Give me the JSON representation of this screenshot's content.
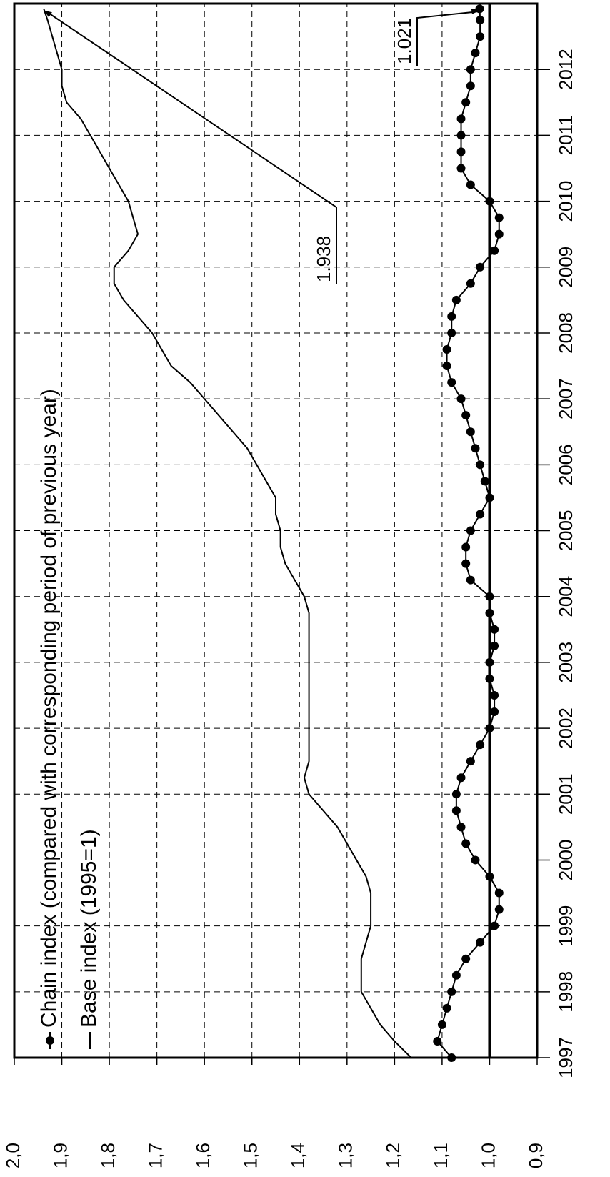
{
  "chart_data": {
    "type": "line",
    "x": [
      1997,
      1997.25,
      1997.5,
      1997.75,
      1998,
      1998.25,
      1998.5,
      1998.75,
      1999,
      1999.25,
      1999.5,
      1999.75,
      2000,
      2000.25,
      2000.5,
      2000.75,
      2001,
      2001.25,
      2001.5,
      2001.75,
      2002,
      2002.25,
      2002.5,
      2002.75,
      2003,
      2003.25,
      2003.5,
      2003.75,
      2004,
      2004.25,
      2004.5,
      2004.75,
      2005,
      2005.25,
      2005.5,
      2005.75,
      2006,
      2006.25,
      2006.5,
      2006.75,
      2007,
      2007.25,
      2007.5,
      2007.75,
      2008,
      2008.25,
      2008.5,
      2008.75,
      2009,
      2009.25,
      2009.5,
      2009.75,
      2010,
      2010.25,
      2010.5,
      2010.75,
      2011,
      2011.25,
      2011.5,
      2011.75,
      2012,
      2012.25,
      2012.5,
      2012.75,
      2012.92
    ],
    "series": [
      {
        "name": "Chain index (compared with corresponding period of previous year)",
        "color": "#000000",
        "markers": true,
        "values": [
          1.08,
          1.11,
          1.1,
          1.09,
          1.08,
          1.07,
          1.05,
          1.02,
          0.99,
          0.98,
          0.98,
          1.0,
          1.03,
          1.05,
          1.06,
          1.07,
          1.07,
          1.06,
          1.04,
          1.02,
          1.0,
          0.99,
          0.99,
          1.0,
          1.0,
          0.99,
          0.99,
          1.0,
          1.0,
          1.04,
          1.05,
          1.05,
          1.04,
          1.02,
          1.0,
          1.01,
          1.02,
          1.03,
          1.04,
          1.05,
          1.06,
          1.08,
          1.09,
          1.09,
          1.08,
          1.08,
          1.07,
          1.04,
          1.02,
          0.99,
          0.98,
          0.98,
          1.0,
          1.04,
          1.06,
          1.06,
          1.06,
          1.06,
          1.05,
          1.04,
          1.04,
          1.03,
          1.02,
          1.02,
          1.021
        ]
      },
      {
        "name": "Base index (1995=1)",
        "color": "#000000",
        "markers": false,
        "values": [
          1.165,
          1.2,
          1.23,
          1.25,
          1.27,
          1.27,
          1.27,
          1.26,
          1.25,
          1.25,
          1.25,
          1.26,
          1.28,
          1.3,
          1.32,
          1.35,
          1.38,
          1.39,
          1.38,
          1.38,
          1.38,
          1.38,
          1.38,
          1.38,
          1.38,
          1.38,
          1.38,
          1.38,
          1.39,
          1.41,
          1.43,
          1.44,
          1.44,
          1.45,
          1.45,
          1.47,
          1.49,
          1.51,
          1.54,
          1.57,
          1.6,
          1.63,
          1.67,
          1.69,
          1.71,
          1.74,
          1.77,
          1.79,
          1.79,
          1.76,
          1.74,
          1.75,
          1.76,
          1.78,
          1.8,
          1.82,
          1.84,
          1.86,
          1.89,
          1.9,
          1.9,
          1.91,
          1.92,
          1.93,
          1.938
        ]
      }
    ],
    "annotations": [
      {
        "text": "1.938"
      },
      {
        "text": "1.021"
      }
    ],
    "reference_line": 1.0,
    "xlim": [
      1997,
      2013
    ],
    "xticks": [
      1997,
      1998,
      1999,
      2000,
      2001,
      2002,
      2003,
      2004,
      2005,
      2006,
      2007,
      2008,
      2009,
      2010,
      2011,
      2012
    ],
    "ylim": [
      0.9,
      2.0
    ],
    "yticks": [
      {
        "value": 0.9,
        "label": "0,9"
      },
      {
        "value": 1.0,
        "label": "1,0"
      },
      {
        "value": 1.1,
        "label": "1,1"
      },
      {
        "value": 1.2,
        "label": "1,2"
      },
      {
        "value": 1.3,
        "label": "1,3"
      },
      {
        "value": 1.4,
        "label": "1,4"
      },
      {
        "value": 1.5,
        "label": "1,5"
      },
      {
        "value": 1.6,
        "label": "1,6"
      },
      {
        "value": 1.7,
        "label": "1,7"
      },
      {
        "value": 1.8,
        "label": "1,8"
      },
      {
        "value": 1.9,
        "label": "1,9"
      },
      {
        "value": 2.0,
        "label": "2,0"
      }
    ],
    "grid": true,
    "legend": "upper left"
  }
}
